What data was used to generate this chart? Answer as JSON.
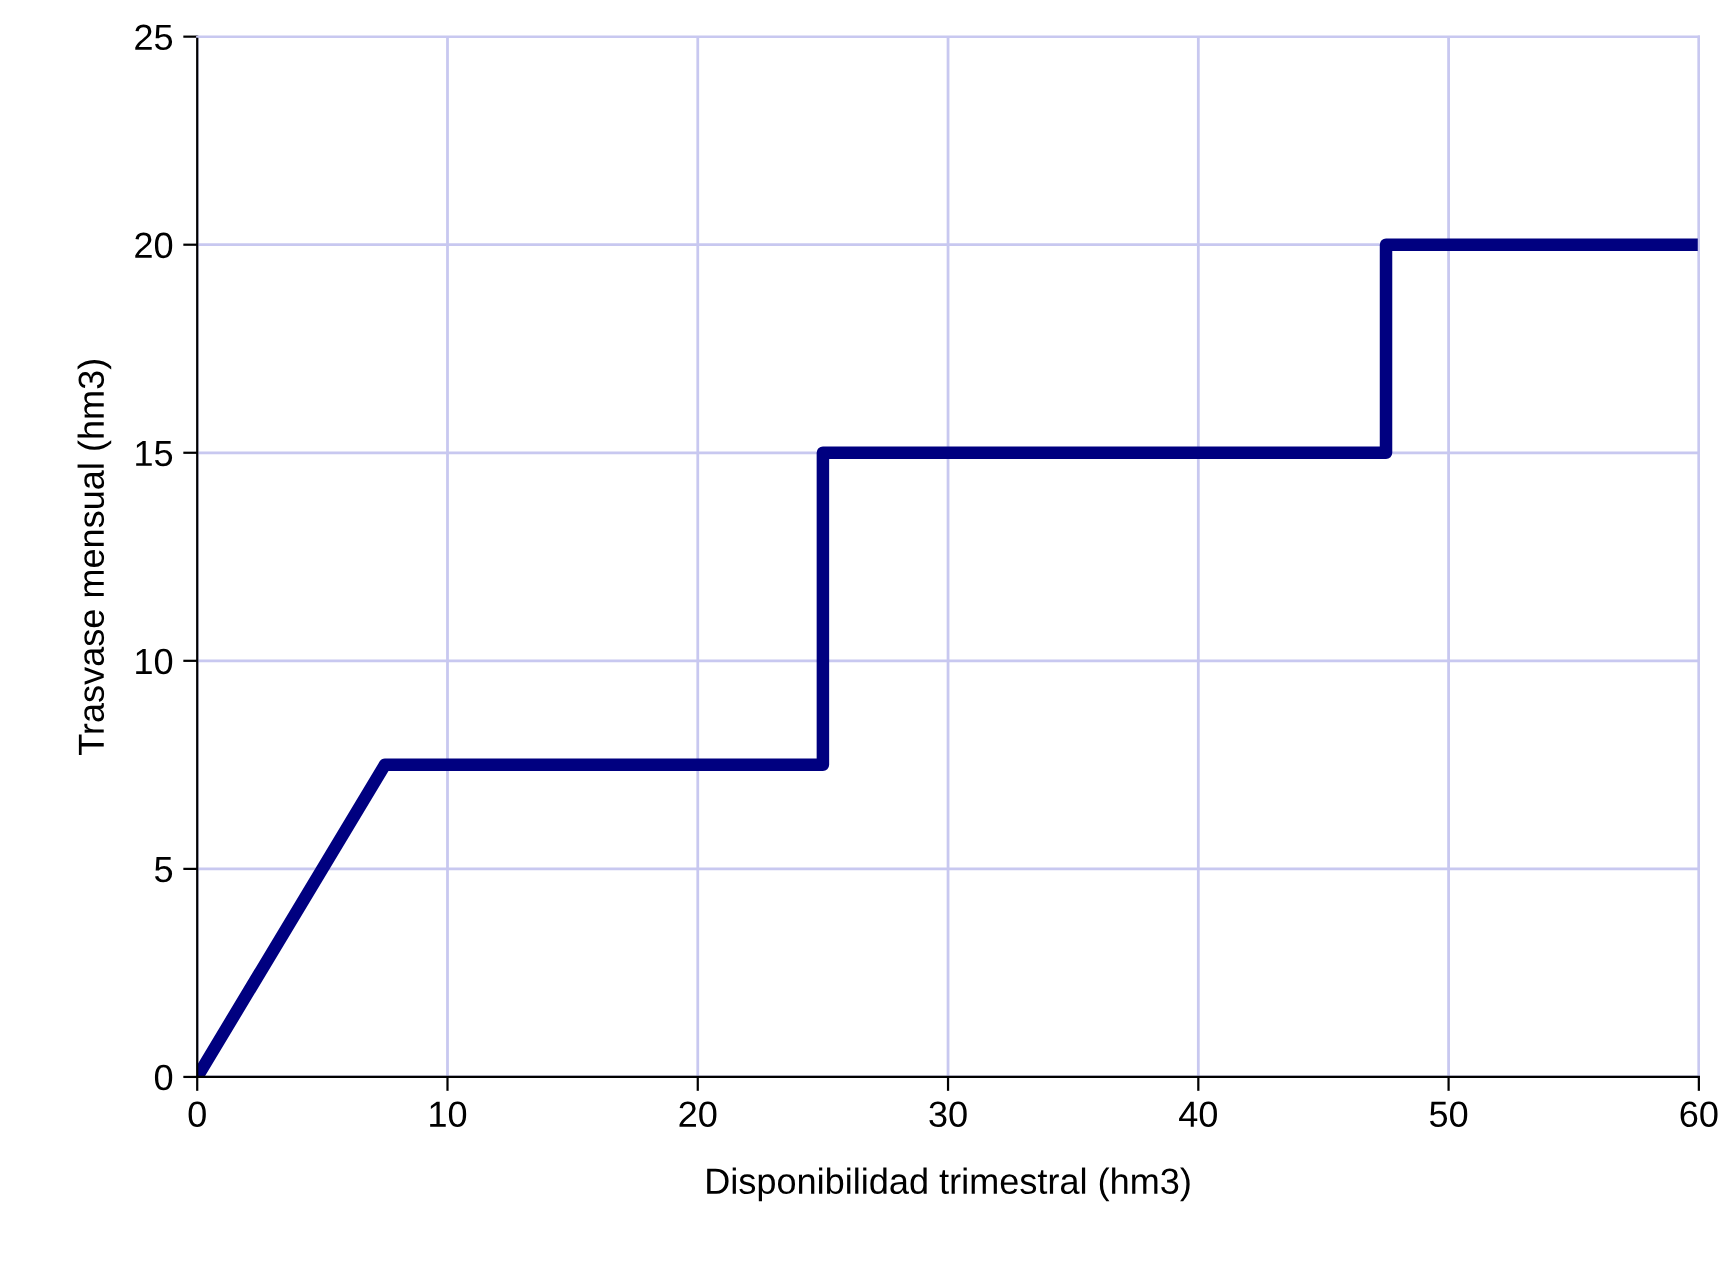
{
  "chart_data": {
    "type": "line",
    "xlabel": "Disponibilidad trimestral (hm3)",
    "ylabel": "Trasvase mensual (hm3)",
    "x": [
      0,
      7.5,
      25,
      25,
      47.5,
      47.5,
      60
    ],
    "series": [
      {
        "color": "#000080",
        "values": [
          0,
          7.5,
          7.5,
          15,
          15,
          20,
          20
        ]
      }
    ],
    "xlim": [
      0,
      60
    ],
    "xticks": [
      0,
      10,
      20,
      30,
      40,
      50,
      60
    ],
    "ylim": [
      0,
      25
    ],
    "yticks": [
      0,
      5,
      10,
      15,
      20,
      25
    ],
    "grid": true,
    "legend": false,
    "marker": "none",
    "line_style": "solid"
  }
}
